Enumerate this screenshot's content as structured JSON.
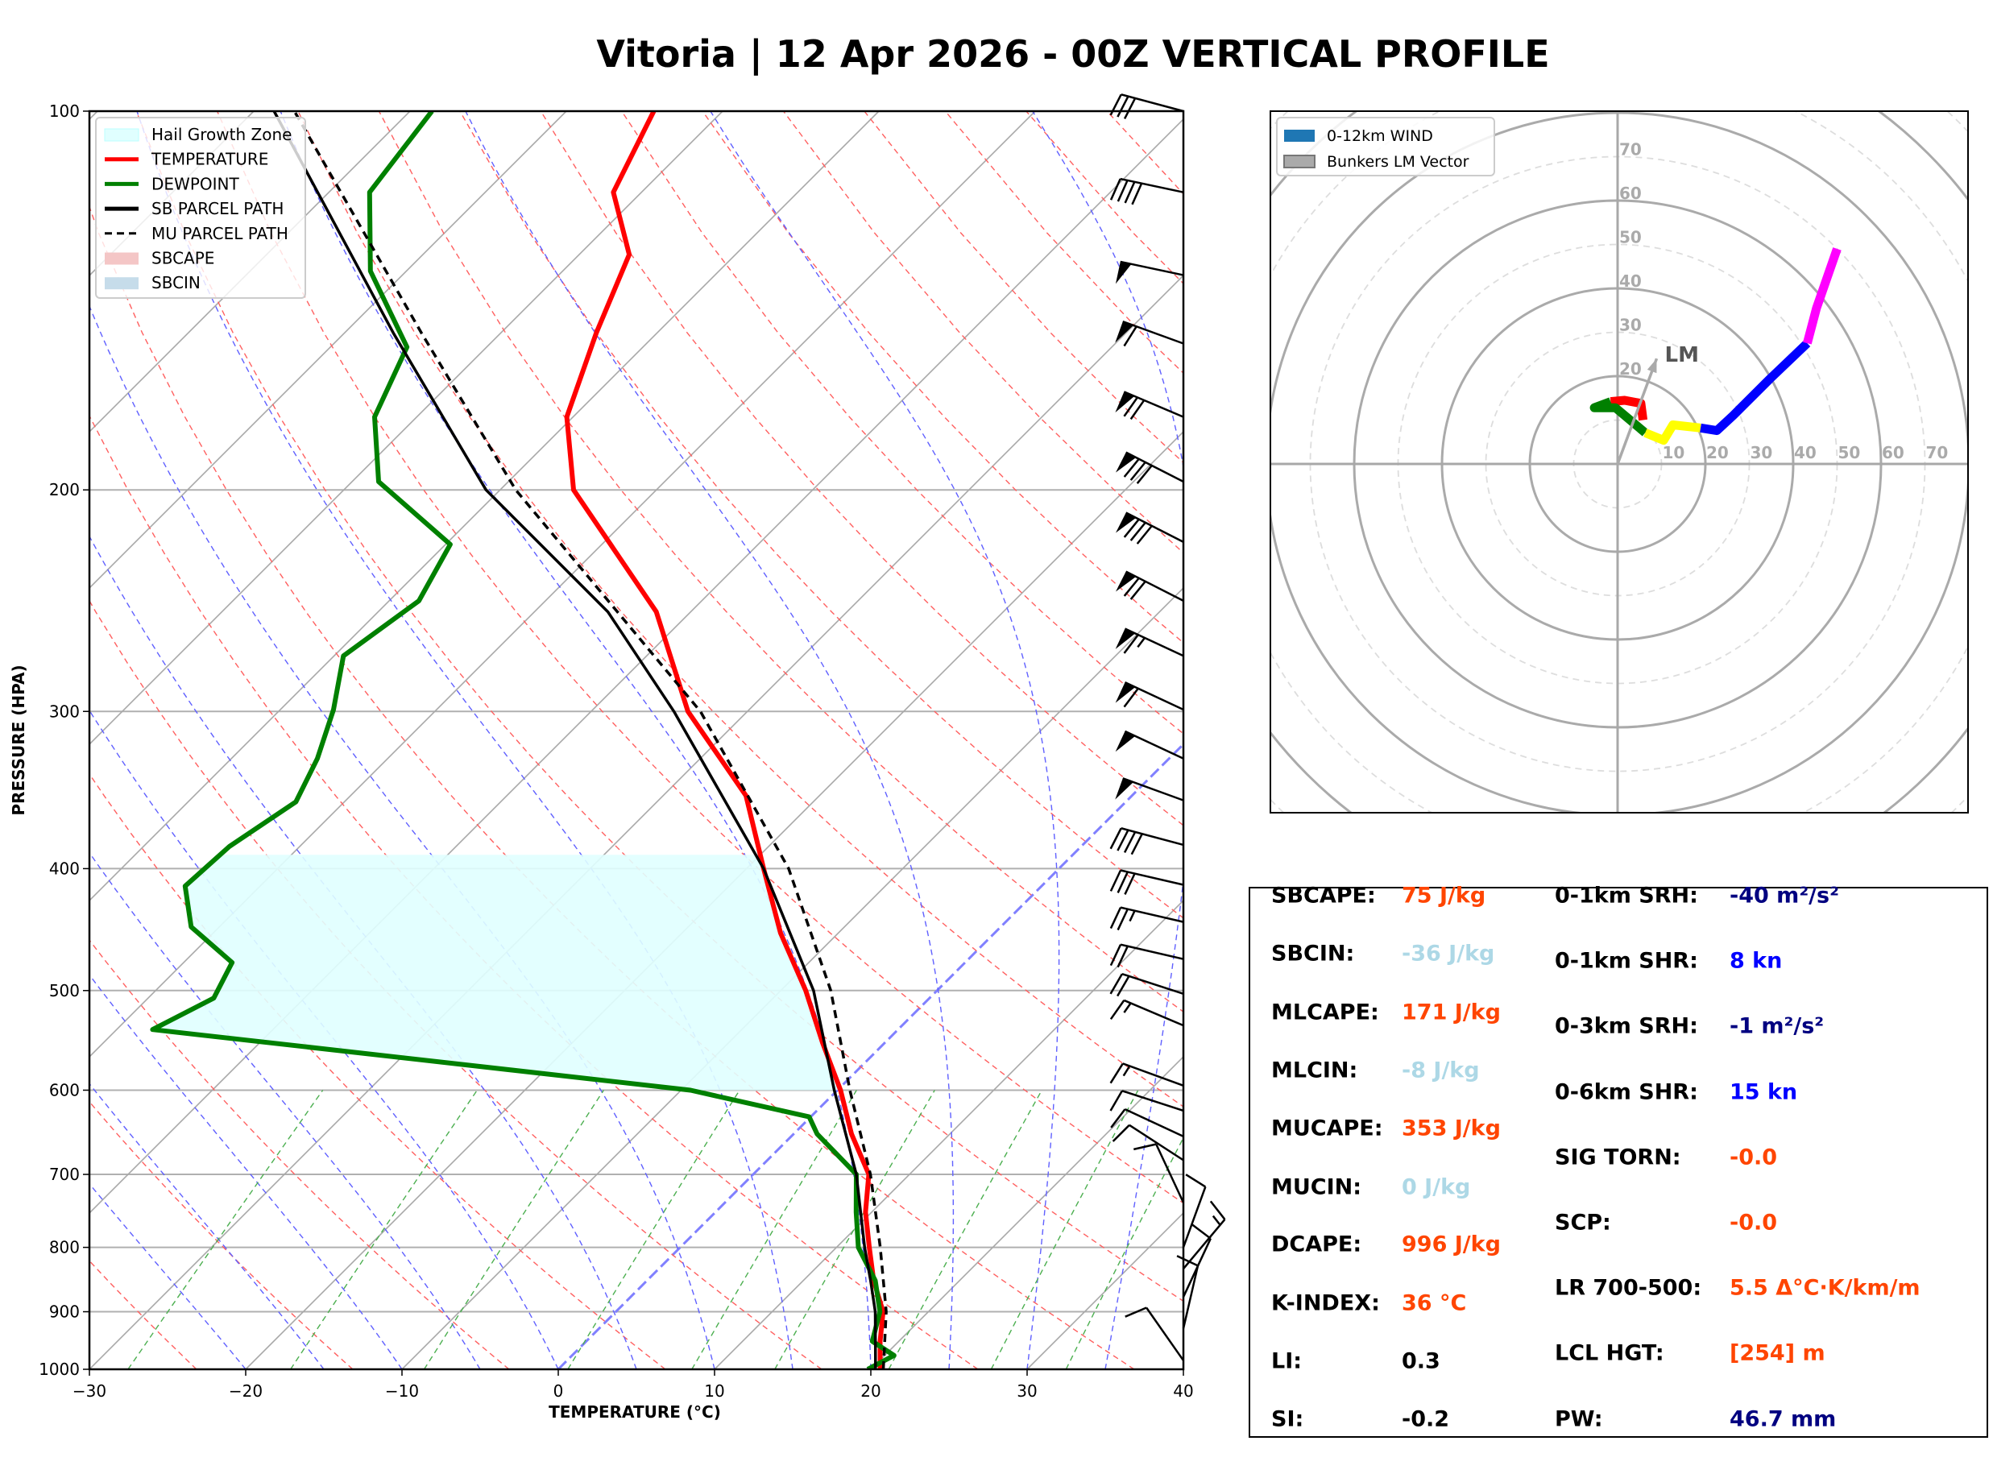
{
  "title": "Vitoria | 12 Apr 2026 - 00Z VERTICAL PROFILE",
  "chart_data": [
    {
      "type": "line",
      "subtype": "skew-t",
      "xlabel": "TEMPERATURE (°C)",
      "ylabel": "PRESSURE (HPA)",
      "xlim": [
        -30,
        40
      ],
      "ylim": [
        1000,
        100
      ],
      "y_scale": "log",
      "x_ticks": [
        -30,
        -20,
        -10,
        0,
        10,
        20,
        30,
        40
      ],
      "y_ticks": [
        100,
        200,
        300,
        400,
        500,
        600,
        700,
        800,
        900,
        1000
      ],
      "grid": true,
      "legend": {
        "position": "top-left",
        "entries": [
          {
            "label": "Hail Growth Zone",
            "color": "#e0ffff",
            "style": "patch"
          },
          {
            "label": "TEMPERATURE",
            "color": "#ff0000",
            "style": "line"
          },
          {
            "label": "DEWPOINT",
            "color": "#008000",
            "style": "line"
          },
          {
            "label": "SB PARCEL PATH",
            "color": "#000000",
            "style": "line"
          },
          {
            "label": "MU PARCEL PATH",
            "color": "#000000",
            "style": "dashed"
          },
          {
            "label": "SBCAPE",
            "color": "#f4c6c6",
            "style": "patch"
          },
          {
            "label": "SBCIN",
            "color": "#c6dcea",
            "style": "patch"
          }
        ]
      },
      "series": [
        {
          "name": "TEMPERATURE",
          "color": "#ff0000",
          "points": [
            [
              1000,
              20.6
            ],
            [
              950,
              18.8
            ],
            [
              900,
              17.1
            ],
            [
              850,
              14.5
            ],
            [
              800,
              12.1
            ],
            [
              750,
              9.6
            ],
            [
              700,
              7.4
            ],
            [
              650,
              3.7
            ],
            [
              600,
              0.2
            ],
            [
              550,
              -4.0
            ],
            [
              500,
              -8.4
            ],
            [
              450,
              -13.7
            ],
            [
              400,
              -18.9
            ],
            [
              350,
              -24.7
            ],
            [
              300,
              -33.8
            ],
            [
              250,
              -42.2
            ],
            [
              200,
              -55.3
            ],
            [
              175,
              -60.4
            ],
            [
              150,
              -63.9
            ],
            [
              130,
              -66.8
            ],
            [
              116,
              -71.8
            ],
            [
              100,
              -74.4
            ]
          ]
        },
        {
          "name": "DEWPOINT",
          "color": "#008000",
          "points": [
            [
              1000,
              19.8
            ],
            [
              975,
              20.6
            ],
            [
              950,
              18.3
            ],
            [
              900,
              16.9
            ],
            [
              850,
              14.6
            ],
            [
              800,
              11.4
            ],
            [
              750,
              9.0
            ],
            [
              700,
              6.6
            ],
            [
              675,
              4.1
            ],
            [
              650,
              1.5
            ],
            [
              630,
              -0.1
            ],
            [
              600,
              -9.4
            ],
            [
              537,
              -47.7
            ],
            [
              507,
              -45.8
            ],
            [
              475,
              -46.9
            ],
            [
              445,
              -51.8
            ],
            [
              413,
              -54.8
            ],
            [
              384,
              -54.5
            ],
            [
              354,
              -53.1
            ],
            [
              327,
              -54.5
            ],
            [
              299,
              -56.6
            ],
            [
              271,
              -59.4
            ],
            [
              245,
              -58.1
            ],
            [
              221,
              -59.7
            ],
            [
              197,
              -68.3
            ],
            [
              175,
              -72.7
            ],
            [
              154,
              -75.1
            ],
            [
              134,
              -82.3
            ],
            [
              116,
              -87.4
            ],
            [
              100,
              -88.6
            ]
          ]
        },
        {
          "name": "SB PARCEL PATH",
          "color": "#000000",
          "points": [
            [
              1000,
              20.3
            ],
            [
              950,
              18.5
            ],
            [
              900,
              16.6
            ],
            [
              850,
              14.3
            ],
            [
              800,
              11.8
            ],
            [
              700,
              6.6
            ],
            [
              600,
              -0.2
            ],
            [
              500,
              -7.9
            ],
            [
              400,
              -18.9
            ],
            [
              300,
              -34.7
            ],
            [
              250,
              -45.3
            ],
            [
              200,
              -60.9
            ],
            [
              150,
              -76.9
            ],
            [
              100,
              -98.7
            ]
          ]
        },
        {
          "name": "MU PARCEL PATH",
          "color": "#000000",
          "dashed": true,
          "points": [
            [
              1000,
              20.8
            ],
            [
              900,
              17.3
            ],
            [
              800,
              12.8
            ],
            [
              700,
              7.5
            ],
            [
              600,
              0.8
            ],
            [
              500,
              -6.8
            ],
            [
              400,
              -17.3
            ],
            [
              300,
              -33.0
            ],
            [
              200,
              -59.0
            ],
            [
              150,
              -75.1
            ],
            [
              100,
              -97.4
            ]
          ]
        }
      ],
      "hail_growth_zone": {
        "pressure_top": 390,
        "pressure_bottom": 600,
        "color": "#e0ffff"
      },
      "wind_barbs": [
        [
          100,
          30,
          255
        ],
        [
          116,
          40,
          258
        ],
        [
          135,
          50,
          258
        ],
        [
          153,
          60,
          250
        ],
        [
          175,
          70,
          247
        ],
        [
          197,
          80,
          243
        ],
        [
          220,
          80,
          243
        ],
        [
          245,
          70,
          243
        ],
        [
          271,
          65,
          245
        ],
        [
          299,
          60,
          245
        ],
        [
          327,
          50,
          245
        ],
        [
          353,
          50,
          250
        ],
        [
          383,
          40,
          255
        ],
        [
          412,
          30,
          257
        ],
        [
          441,
          25,
          257
        ],
        [
          472,
          20,
          257
        ],
        [
          503,
          20,
          252
        ],
        [
          533,
          15,
          247
        ],
        [
          595,
          15,
          250
        ],
        [
          623,
          10,
          252
        ],
        [
          653,
          10,
          245
        ],
        [
          682,
          10,
          237
        ],
        [
          737,
          10,
          205
        ],
        [
          800,
          10,
          160
        ],
        [
          832,
          15,
          140
        ],
        [
          876,
          10,
          155
        ],
        [
          928,
          10,
          167
        ],
        [
          984,
          10,
          215
        ]
      ]
    },
    {
      "type": "line",
      "subtype": "hodograph",
      "units": "kn",
      "ring_labels": [
        10,
        20,
        30,
        40,
        50,
        60,
        70
      ],
      "legend": {
        "position": "top-left",
        "entries": [
          {
            "label": "0-12km WIND",
            "color": "#1f77b4"
          },
          {
            "label": "Bunkers LM Vector",
            "color": "#aaaaaa"
          }
        ]
      },
      "segments": [
        {
          "color": "#ff0000",
          "points": [
            [
              5.8,
              10.0
            ],
            [
              5.3,
              13.8
            ],
            [
              1.6,
              14.5
            ],
            [
              -1.6,
              14.2
            ]
          ]
        },
        {
          "color": "#008000",
          "points": [
            [
              -1.6,
              14.2
            ],
            [
              -5.3,
              12.8
            ],
            [
              -0.5,
              12.8
            ],
            [
              6.3,
              7.1
            ]
          ]
        },
        {
          "color": "#ffff00",
          "points": [
            [
              6.3,
              7.1
            ],
            [
              10.5,
              5.4
            ],
            [
              12.6,
              8.9
            ],
            [
              18.9,
              8.2
            ]
          ]
        },
        {
          "color": "#0000ff",
          "points": [
            [
              18.9,
              8.2
            ],
            [
              22.6,
              7.6
            ],
            [
              26.3,
              11.0
            ],
            [
              34.7,
              19.4
            ],
            [
              43.2,
              27.5
            ]
          ]
        },
        {
          "color": "#ff00ff",
          "points": [
            [
              43.2,
              27.5
            ],
            [
              45.3,
              35.5
            ],
            [
              50.0,
              49.0
            ]
          ]
        }
      ],
      "lm_vector": {
        "label": "LM",
        "u": 8.9,
        "v": 24.0,
        "color": "#aaaaaa"
      }
    }
  ],
  "stats": {
    "left": [
      {
        "label": "SBCAPE:",
        "value": "75 J/kg",
        "color": "#ff4500"
      },
      {
        "label": "SBCIN:",
        "value": "-36 J/kg",
        "color": "#add8e6"
      },
      {
        "label": "MLCAPE:",
        "value": "171 J/kg",
        "color": "#ff4500"
      },
      {
        "label": "MLCIN:",
        "value": "-8 J/kg",
        "color": "#add8e6"
      },
      {
        "label": "MUCAPE:",
        "value": "353 J/kg",
        "color": "#ff4500"
      },
      {
        "label": "MUCIN:",
        "value": "0 J/kg",
        "color": "#add8e6"
      },
      {
        "label": "DCAPE:",
        "value": "996 J/kg",
        "color": "#ff4500"
      },
      {
        "label": "K-INDEX:",
        "value": "36 °C",
        "color": "#ff4500"
      },
      {
        "label": "LI:",
        "value": "0.3",
        "color": "#000000"
      },
      {
        "label": "SI:",
        "value": "-0.2",
        "color": "#000000"
      }
    ],
    "right": [
      {
        "label": "0-1km SRH:",
        "value": "-40 m²/s²",
        "color": "#000080"
      },
      {
        "label": "0-1km SHR:",
        "value": "8 kn",
        "color": "#0000ff"
      },
      {
        "label": "0-3km SRH:",
        "value": "-1 m²/s²",
        "color": "#000080"
      },
      {
        "label": "0-6km SHR:",
        "value": "15 kn",
        "color": "#0000ff"
      },
      {
        "label": "SIG TORN:",
        "value": "-0.0",
        "color": "#ff4500"
      },
      {
        "label": "SCP:",
        "value": "-0.0",
        "color": "#ff4500"
      },
      {
        "label": "LR 700-500:",
        "value": "5.5 Δ°C·K/km/m",
        "color": "#ff4500"
      },
      {
        "label": "LCL HGT:",
        "value": "[254] m",
        "color": "#ff4500"
      },
      {
        "label": "PW:",
        "value": "46.7 mm",
        "color": "#000080"
      }
    ]
  }
}
